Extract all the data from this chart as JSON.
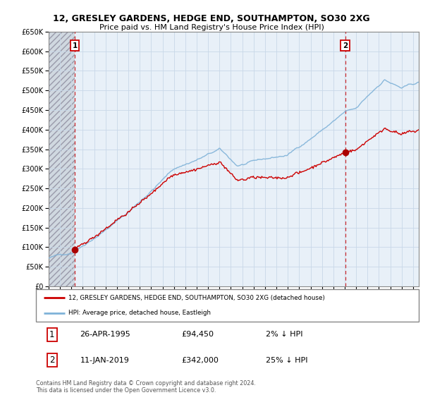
{
  "title": "12, GRESLEY GARDENS, HEDGE END, SOUTHAMPTON, SO30 2XG",
  "subtitle": "Price paid vs. HM Land Registry's House Price Index (HPI)",
  "legend_line1": "12, GRESLEY GARDENS, HEDGE END, SOUTHAMPTON, SO30 2XG (detached house)",
  "legend_line2": "HPI: Average price, detached house, Eastleigh",
  "sale1_label": "1",
  "sale1_date": "26-APR-1995",
  "sale1_price": "£94,450",
  "sale1_hpi": "2% ↓ HPI",
  "sale2_label": "2",
  "sale2_date": "11-JAN-2019",
  "sale2_price": "£342,000",
  "sale2_hpi": "25% ↓ HPI",
  "footer": "Contains HM Land Registry data © Crown copyright and database right 2024.\nThis data is licensed under the Open Government Licence v3.0.",
  "hpi_color": "#7fb2d8",
  "price_color": "#cc0000",
  "sale_marker_color": "#aa0000",
  "grid_color": "#c8d8e8",
  "background_color": "#e8f0f8",
  "hatch_color": "#b0b8c0",
  "ylim": [
    0,
    650000
  ],
  "yticks": [
    0,
    50000,
    100000,
    150000,
    200000,
    250000,
    300000,
    350000,
    400000,
    450000,
    500000,
    550000,
    600000,
    650000
  ],
  "xlim_start": 1993.0,
  "xlim_end": 2025.5,
  "xticks": [
    1993,
    1994,
    1995,
    1996,
    1997,
    1998,
    1999,
    2000,
    2001,
    2002,
    2003,
    2004,
    2005,
    2006,
    2007,
    2008,
    2009,
    2010,
    2011,
    2012,
    2013,
    2014,
    2015,
    2016,
    2017,
    2018,
    2019,
    2020,
    2021,
    2022,
    2023,
    2024,
    2025
  ],
  "sale1_x": 1995.3,
  "sale1_y": 94450,
  "sale2_x": 2019.04,
  "sale2_y": 342000,
  "hatch_end_x": 1995.3
}
